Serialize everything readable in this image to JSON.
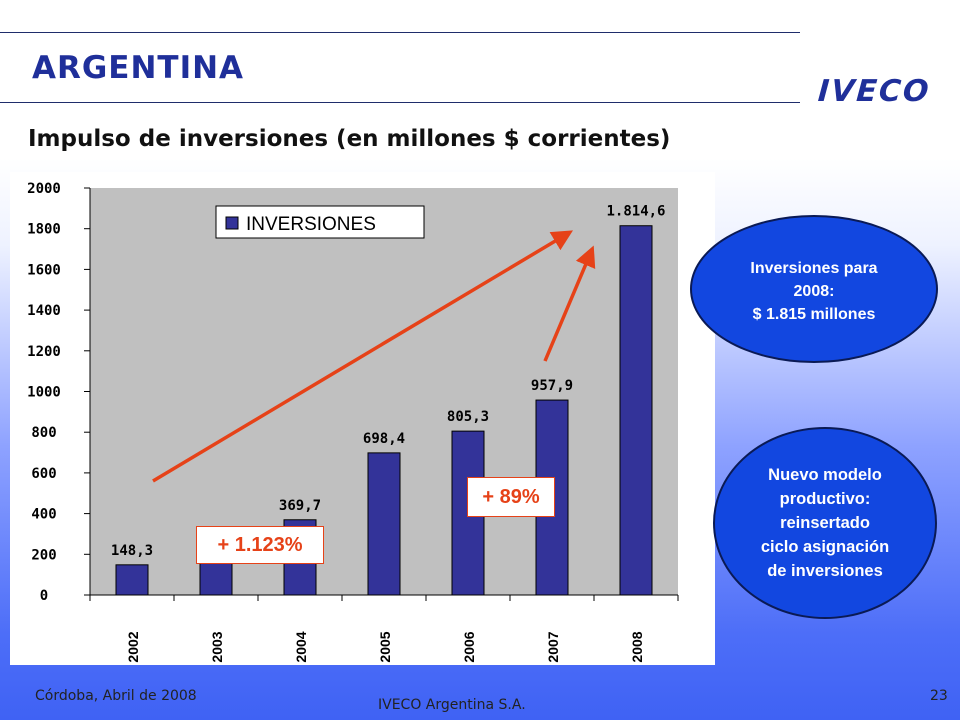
{
  "header": {
    "title": "ARGENTINA",
    "brand": "IVECO",
    "subtitle": "Impulso de inversiones (en millones $ corrientes)"
  },
  "chart_data": {
    "type": "bar",
    "categories": [
      "2002",
      "2003",
      "2004",
      "2005",
      "2006",
      "2007",
      "2008"
    ],
    "series": [
      {
        "name": "INVERSIONES",
        "values": [
          148.3,
          187.7,
          369.7,
          698.4,
          805.3,
          957.9,
          1814.6
        ]
      }
    ],
    "data_labels": [
      "148,3",
      "187,7",
      "369,7",
      "698,4",
      "805,3",
      "957,9",
      "1.814,6"
    ],
    "yticks": [
      "0",
      "200",
      "400",
      "600",
      "800",
      "1000",
      "1200",
      "1400",
      "1600",
      "1800",
      "2000"
    ],
    "ylim": [
      0,
      2000
    ],
    "grid": false,
    "plot_background": "#c0c0c0",
    "bar_color": "#333399",
    "legend_position": "top-left",
    "annotations": [
      {
        "text": "+ 1.123%",
        "from_category": "2002",
        "to_category": "2008"
      },
      {
        "text": "+ 89%",
        "from_category": "2007",
        "to_category": "2008"
      }
    ],
    "annotation_color": "#e64218"
  },
  "callouts": {
    "inversiones": {
      "lines": [
        "Inversiones para",
        "2008:",
        "$ 1.815 millones"
      ]
    },
    "modelo": {
      "lines": [
        "Nuevo modelo",
        "productivo:",
        "reinsertado",
        "ciclo asignación",
        "de inversiones"
      ]
    }
  },
  "footer": {
    "date": "Córdoba, Abril de 2008",
    "company": "IVECO Argentina S.A.",
    "page_number": "23"
  }
}
